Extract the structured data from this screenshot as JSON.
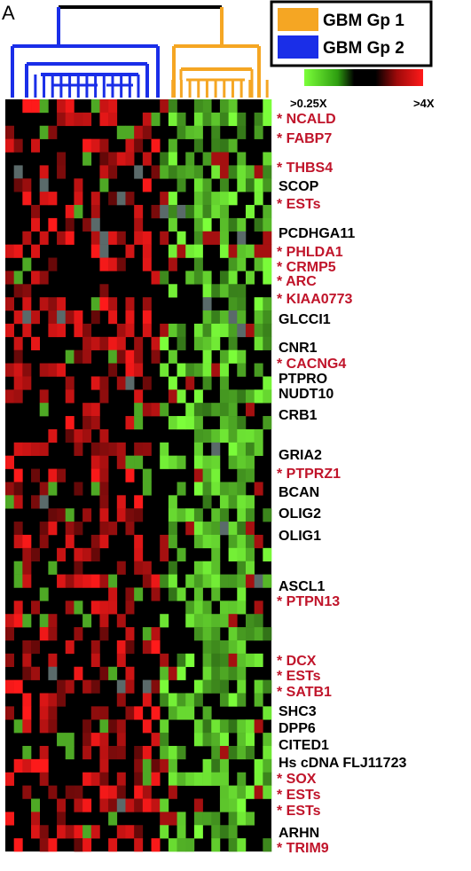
{
  "panel_label": "A",
  "legend": {
    "groups": [
      {
        "name": "GBM Gp 1",
        "color": "#F5A623"
      },
      {
        "name": "GBM Gp 2",
        "color": "#1A2EE8"
      }
    ],
    "scale_min_label": ">0.25X",
    "scale_max_label": ">4X"
  },
  "colors": {
    "gp1": "#F5A623",
    "gp2": "#1A2EE8",
    "up": "#FF1A1A",
    "down": "#7CFF3A",
    "neutral": "#000000",
    "missing": "#5A6A6A",
    "highlight_text": "#C0142A",
    "plain_text": "#000000"
  },
  "chart_data": {
    "type": "heatmap",
    "title": "",
    "columns": {
      "gp2_count": 18,
      "gp1_count": 13
    },
    "rows_count": 57,
    "scale": {
      "min": 0.25,
      "max": 4,
      "log2": true
    },
    "genes": [
      {
        "label": "NCALD",
        "marked": true
      },
      {
        "label": "FABP7",
        "marked": true
      },
      {
        "label": "THBS4",
        "marked": true
      },
      {
        "label": "SCOP",
        "marked": false
      },
      {
        "label": "ESTs",
        "marked": true
      },
      {
        "label": "PCDHGA11",
        "marked": false
      },
      {
        "label": "PHLDA1",
        "marked": true
      },
      {
        "label": "CRMP5",
        "marked": true
      },
      {
        "label": "ARC",
        "marked": true
      },
      {
        "label": "KIAA0773",
        "marked": true
      },
      {
        "label": "GLCCI1",
        "marked": false
      },
      {
        "label": "CNR1",
        "marked": false
      },
      {
        "label": "CACNG4",
        "marked": true
      },
      {
        "label": "PTPRO",
        "marked": false
      },
      {
        "label": "NUDT10",
        "marked": false
      },
      {
        "label": "CRB1",
        "marked": false
      },
      {
        "label": "GRIA2",
        "marked": false
      },
      {
        "label": "PTPRZ1",
        "marked": true
      },
      {
        "label": "BCAN",
        "marked": false
      },
      {
        "label": "OLIG2",
        "marked": false
      },
      {
        "label": "OLIG1",
        "marked": false
      },
      {
        "label": "ASCL1",
        "marked": false
      },
      {
        "label": "PTPN13",
        "marked": true
      },
      {
        "label": "DCX",
        "marked": true
      },
      {
        "label": "ESTs",
        "marked": true
      },
      {
        "label": "SATB1",
        "marked": true
      },
      {
        "label": "SHC3",
        "marked": false
      },
      {
        "label": "DPP6",
        "marked": false
      },
      {
        "label": "CITED1",
        "marked": false
      },
      {
        "label": "Hs cDNA FLJ11723",
        "marked": false
      },
      {
        "label": "SOX",
        "marked": true
      },
      {
        "label": "ESTs",
        "marked": true
      },
      {
        "label": "ESTs",
        "marked": true
      },
      {
        "label": "ARHN",
        "marked": false
      },
      {
        "label": "TRIM9",
        "marked": true
      }
    ]
  }
}
